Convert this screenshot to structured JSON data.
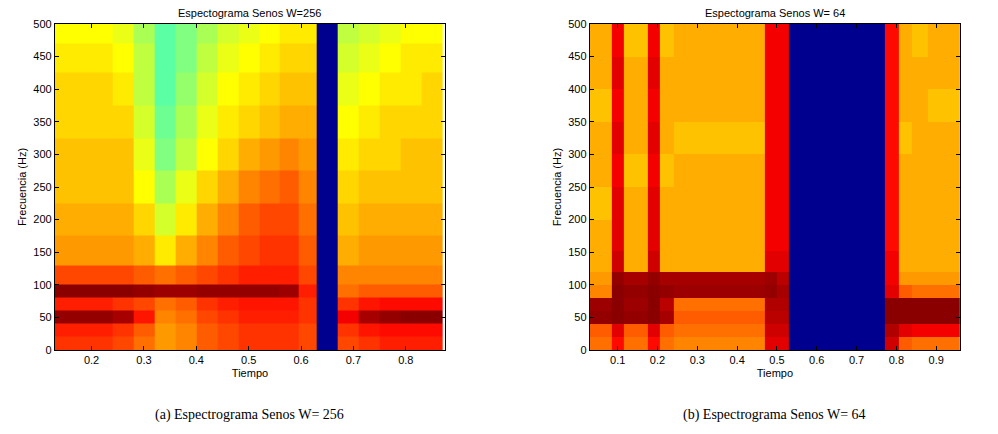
{
  "chart_data": [
    {
      "type": "heatmap",
      "title": "Espectograma Senos W=256",
      "caption": "(a) Espectrograma Senos W= 256",
      "x_label": "Tiempo",
      "y_label": "Frecuencia (Hz)",
      "xlim": [
        0.13,
        0.875
      ],
      "xticks": [
        0.2,
        0.3,
        0.4,
        0.5,
        0.6,
        0.7,
        0.8
      ],
      "ylim": [
        0,
        500
      ],
      "yticks": [
        0,
        50,
        100,
        150,
        200,
        250,
        300,
        350,
        400,
        450,
        500
      ],
      "zlim": [
        0,
        100
      ],
      "x": [
        0.14,
        0.18,
        0.22,
        0.26,
        0.3,
        0.34,
        0.38,
        0.42,
        0.46,
        0.5,
        0.54,
        0.58,
        0.61,
        0.65,
        0.69,
        0.73,
        0.77,
        0.81,
        0.85
      ],
      "y": [
        10,
        30,
        50,
        70,
        90,
        110,
        150,
        200,
        250,
        300,
        350,
        400,
        450,
        490
      ],
      "z": [
        [
          82,
          82,
          82,
          80,
          76,
          72,
          74,
          78,
          80,
          82,
          82,
          82,
          80,
          0,
          80,
          82,
          84,
          84,
          84
        ],
        [
          84,
          84,
          84,
          82,
          78,
          72,
          74,
          78,
          80,
          82,
          82,
          82,
          80,
          0,
          82,
          85,
          86,
          86,
          86
        ],
        [
          98,
          98,
          98,
          96,
          85,
          74,
          76,
          80,
          82,
          84,
          84,
          84,
          82,
          0,
          88,
          96,
          98,
          99,
          99
        ],
        [
          84,
          84,
          84,
          82,
          80,
          76,
          78,
          82,
          84,
          85,
          85,
          85,
          82,
          0,
          82,
          85,
          86,
          86,
          86
        ],
        [
          99,
          99,
          99,
          99,
          98,
          97,
          97,
          98,
          98,
          98,
          98,
          97,
          84,
          0,
          76,
          78,
          78,
          78,
          78
        ],
        [
          80,
          80,
          80,
          80,
          78,
          76,
          78,
          80,
          82,
          84,
          84,
          84,
          80,
          0,
          74,
          74,
          74,
          74,
          74
        ],
        [
          72,
          72,
          72,
          72,
          70,
          64,
          70,
          74,
          78,
          80,
          82,
          82,
          78,
          0,
          70,
          72,
          72,
          72,
          72
        ],
        [
          70,
          70,
          70,
          70,
          66,
          58,
          64,
          70,
          74,
          78,
          80,
          80,
          76,
          0,
          68,
          70,
          70,
          70,
          70
        ],
        [
          68,
          68,
          68,
          68,
          62,
          54,
          60,
          66,
          70,
          74,
          76,
          78,
          74,
          0,
          66,
          68,
          68,
          68,
          68
        ],
        [
          68,
          68,
          68,
          68,
          60,
          50,
          56,
          62,
          66,
          70,
          72,
          74,
          72,
          0,
          64,
          66,
          66,
          68,
          68
        ],
        [
          66,
          66,
          66,
          66,
          58,
          48,
          54,
          60,
          64,
          66,
          68,
          70,
          70,
          0,
          62,
          64,
          66,
          66,
          66
        ],
        [
          66,
          66,
          66,
          64,
          56,
          46,
          52,
          58,
          62,
          64,
          66,
          68,
          68,
          0,
          60,
          62,
          64,
          64,
          66
        ],
        [
          64,
          64,
          64,
          62,
          56,
          46,
          50,
          56,
          60,
          62,
          64,
          66,
          66,
          0,
          58,
          60,
          62,
          64,
          64
        ],
        [
          62,
          62,
          62,
          60,
          54,
          46,
          50,
          54,
          58,
          60,
          62,
          64,
          64,
          0,
          56,
          58,
          60,
          62,
          62
        ]
      ]
    },
    {
      "type": "heatmap",
      "title": "Espectograma Senos W= 64",
      "caption": "(b) Espectrograma Senos W= 64",
      "x_label": "Tiempo",
      "y_label": "Frecuencia (Hz)",
      "xlim": [
        0.03,
        0.96
      ],
      "xticks": [
        0.1,
        0.2,
        0.3,
        0.4,
        0.5,
        0.6,
        0.7,
        0.8,
        0.9
      ],
      "ylim": [
        0,
        500
      ],
      "yticks": [
        0,
        50,
        100,
        150,
        200,
        250,
        300,
        350,
        400,
        450,
        500
      ],
      "zlim": [
        0,
        100
      ],
      "x": [
        0.04,
        0.07,
        0.1,
        0.13,
        0.16,
        0.19,
        0.22,
        0.26,
        0.3,
        0.35,
        0.4,
        0.45,
        0.49,
        0.51,
        0.55,
        0.6,
        0.65,
        0.7,
        0.75,
        0.79,
        0.82,
        0.86,
        0.9,
        0.94
      ],
      "y": [
        10,
        30,
        50,
        70,
        90,
        110,
        130,
        175,
        225,
        275,
        325,
        375,
        425,
        475
      ],
      "z": [
        [
          76,
          76,
          86,
          76,
          76,
          86,
          76,
          74,
          74,
          74,
          74,
          74,
          90,
          90,
          0,
          0,
          0,
          0,
          0,
          92,
          78,
          76,
          76,
          76
        ],
        [
          78,
          78,
          90,
          78,
          78,
          90,
          78,
          76,
          76,
          76,
          76,
          76,
          92,
          92,
          0,
          0,
          0,
          0,
          0,
          95,
          90,
          88,
          88,
          88
        ],
        [
          98,
          98,
          99,
          98,
          98,
          99,
          96,
          78,
          78,
          78,
          78,
          78,
          94,
          94,
          0,
          0,
          0,
          0,
          0,
          99,
          99,
          99,
          99,
          99
        ],
        [
          97,
          97,
          99,
          97,
          97,
          99,
          94,
          76,
          76,
          76,
          76,
          76,
          95,
          95,
          0,
          0,
          0,
          0,
          0,
          99,
          99,
          99,
          99,
          99
        ],
        [
          74,
          74,
          99,
          98,
          98,
          99,
          98,
          97,
          97,
          97,
          97,
          97,
          98,
          96,
          0,
          0,
          0,
          0,
          0,
          90,
          78,
          76,
          76,
          76
        ],
        [
          72,
          72,
          98,
          96,
          96,
          98,
          96,
          96,
          96,
          96,
          96,
          96,
          97,
          94,
          0,
          0,
          0,
          0,
          0,
          88,
          72,
          72,
          72,
          72
        ],
        [
          70,
          70,
          92,
          70,
          70,
          92,
          70,
          70,
          70,
          70,
          70,
          70,
          90,
          90,
          0,
          0,
          0,
          0,
          0,
          88,
          70,
          70,
          70,
          70
        ],
        [
          70,
          70,
          90,
          70,
          70,
          90,
          70,
          70,
          70,
          70,
          70,
          70,
          88,
          88,
          0,
          0,
          0,
          0,
          0,
          86,
          70,
          70,
          70,
          70
        ],
        [
          68,
          68,
          90,
          70,
          70,
          90,
          70,
          70,
          70,
          70,
          70,
          70,
          88,
          88,
          0,
          0,
          0,
          0,
          0,
          86,
          70,
          70,
          70,
          70
        ],
        [
          70,
          70,
          88,
          68,
          68,
          88,
          68,
          70,
          70,
          70,
          70,
          70,
          88,
          88,
          0,
          0,
          0,
          0,
          0,
          86,
          70,
          70,
          70,
          70
        ],
        [
          70,
          70,
          90,
          70,
          70,
          90,
          70,
          68,
          68,
          68,
          68,
          68,
          88,
          88,
          0,
          0,
          0,
          0,
          0,
          86,
          68,
          70,
          70,
          70
        ],
        [
          68,
          68,
          88,
          70,
          70,
          88,
          70,
          70,
          70,
          70,
          70,
          70,
          88,
          88,
          0,
          0,
          0,
          0,
          0,
          86,
          70,
          70,
          68,
          68
        ],
        [
          70,
          70,
          90,
          70,
          70,
          90,
          70,
          70,
          70,
          70,
          70,
          70,
          88,
          88,
          0,
          0,
          0,
          0,
          0,
          86,
          70,
          70,
          70,
          70
        ],
        [
          70,
          70,
          88,
          68,
          68,
          88,
          68,
          70,
          70,
          70,
          70,
          70,
          88,
          88,
          0,
          0,
          0,
          0,
          0,
          86,
          70,
          68,
          70,
          70
        ]
      ]
    }
  ]
}
